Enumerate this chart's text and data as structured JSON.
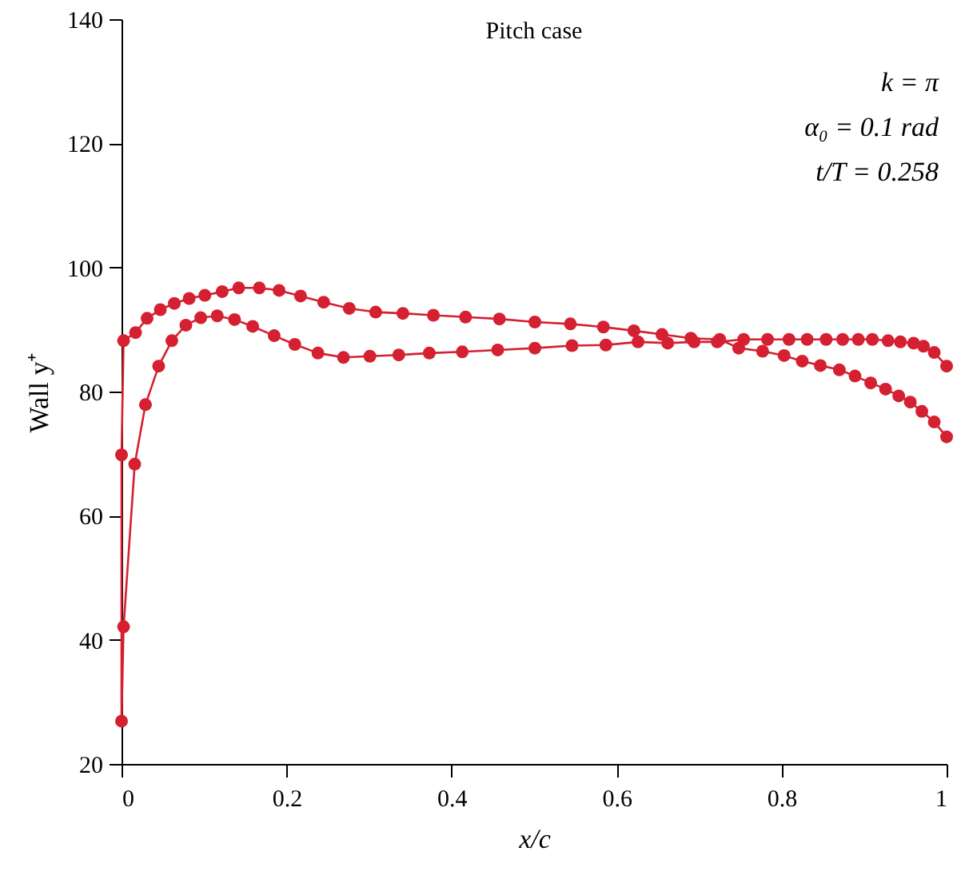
{
  "chart_data": {
    "type": "line",
    "title": "Pitch case",
    "xlabel": "x/c",
    "ylabel": "Wall y⁺",
    "annotations": [
      "k = π",
      "α₀ = 0.1 rad",
      "t/T = 0.258"
    ],
    "marker": "circle",
    "line_style": "solid",
    "grid": false,
    "xlim": [
      0,
      1
    ],
    "xticks": [
      {
        "value": 0,
        "label": "0"
      },
      0.2,
      0.4,
      0.6,
      0.8,
      {
        "value": 1,
        "label": "1"
      }
    ],
    "ylim": [
      20,
      140
    ],
    "yticks": [
      20,
      40,
      60,
      80,
      100,
      120,
      140
    ],
    "series": [
      {
        "color": "#d42030",
        "x": [
          1.0,
          0.985,
          0.972,
          0.96,
          0.944,
          0.929,
          0.91,
          0.893,
          0.874,
          0.854,
          0.831,
          0.809,
          0.783,
          0.754,
          0.722,
          0.694,
          0.662,
          0.626,
          0.587,
          0.546,
          0.501,
          0.456,
          0.413,
          0.373,
          0.336,
          0.301,
          0.269,
          0.238,
          0.21,
          0.185,
          0.159,
          0.137,
          0.116,
          0.096,
          0.078,
          0.061,
          0.045,
          0.029,
          0.016,
          0.0025,
          0,
          0,
          0.0025,
          0.017,
          0.031,
          0.047,
          0.064,
          0.082,
          0.101,
          0.122,
          0.142,
          0.167,
          0.191,
          0.217,
          0.245,
          0.276,
          0.308,
          0.341,
          0.378,
          0.417,
          0.458,
          0.501,
          0.544,
          0.584,
          0.621,
          0.655,
          0.69,
          0.725,
          0.748,
          0.777,
          0.803,
          0.825,
          0.847,
          0.87,
          0.889,
          0.908,
          0.926,
          0.942,
          0.956,
          0.97,
          0.985,
          1.0
        ],
        "values": [
          84.1,
          86.3,
          87.3,
          87.8,
          88.0,
          88.2,
          88.4,
          88.4,
          88.4,
          88.4,
          88.4,
          88.4,
          88.4,
          88.4,
          88.0,
          88.0,
          87.8,
          88.0,
          87.5,
          87.4,
          87.0,
          86.7,
          86.4,
          86.2,
          85.9,
          85.7,
          85.5,
          86.2,
          87.6,
          89.0,
          90.5,
          91.6,
          92.2,
          91.9,
          90.7,
          88.2,
          84.1,
          77.9,
          68.3,
          42.1,
          26.9,
          69.8,
          88.2,
          89.5,
          91.8,
          93.2,
          94.2,
          95.0,
          95.5,
          96.1,
          96.7,
          96.7,
          96.3,
          95.4,
          94.4,
          93.4,
          92.8,
          92.6,
          92.3,
          92.0,
          91.7,
          91.2,
          90.9,
          90.4,
          89.8,
          89.2,
          88.6,
          88.4,
          87.0,
          86.5,
          85.8,
          84.9,
          84.2,
          83.5,
          82.5,
          81.4,
          80.4,
          79.3,
          78.3,
          76.8,
          75.1,
          72.7
        ]
      }
    ]
  }
}
